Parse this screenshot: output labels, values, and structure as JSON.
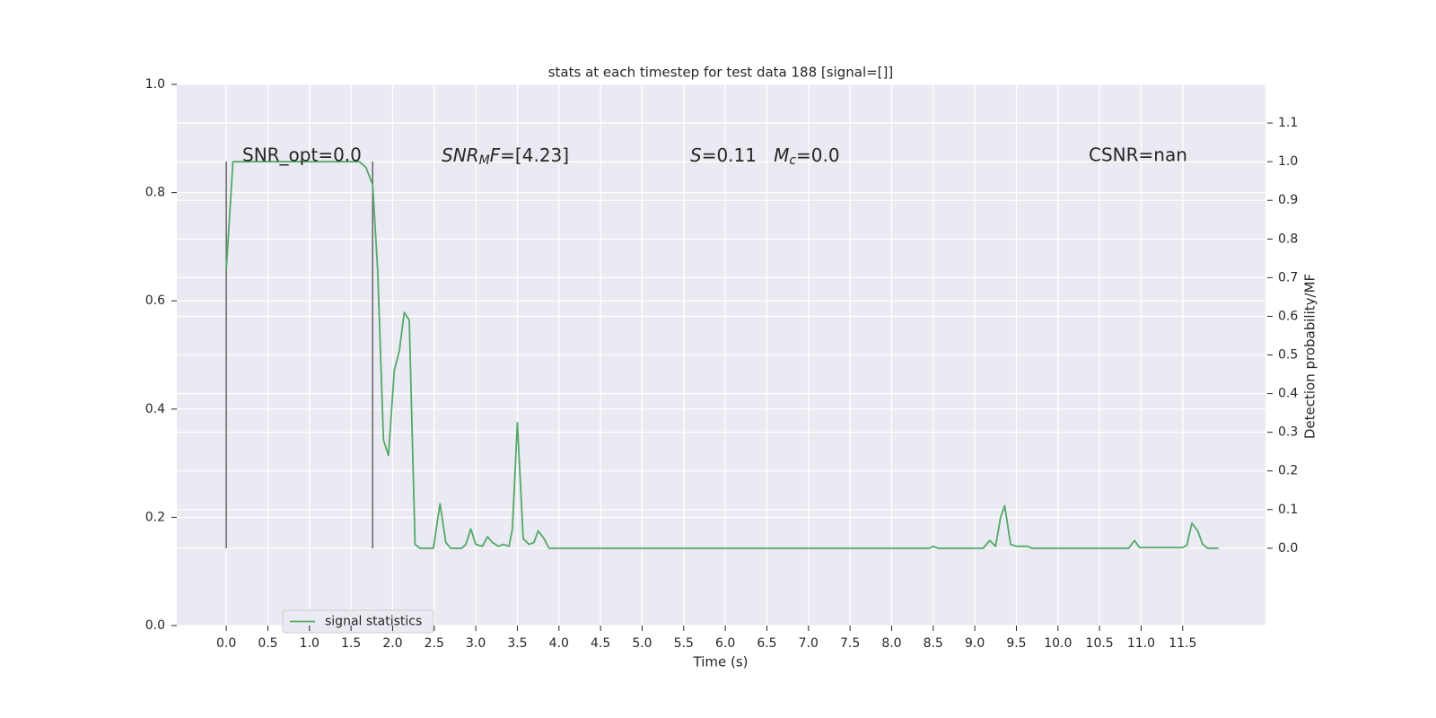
{
  "chart_data": {
    "type": "line",
    "title": "stats at each timestep for test data 188 [signal=[]]",
    "xlabel": "Time (s)",
    "y2label": "Detection probability/MF",
    "annotations": [
      {
        "text": "SNR_opt=0.0"
      },
      {
        "parts": [
          "SNR",
          "M",
          "F",
          "=[4.23]"
        ]
      },
      {
        "parts": [
          "S",
          "=0.11   ",
          "M",
          "c",
          "=0.0"
        ]
      },
      {
        "text": "CSNR=nan"
      }
    ],
    "x": [
      0,
      0.08,
      1.6,
      1.68,
      1.76,
      1.82,
      1.89,
      1.95,
      2.02,
      2.08,
      2.14,
      2.2,
      2.27,
      2.33,
      2.49,
      2.57,
      2.64,
      2.7,
      2.83,
      2.88,
      2.94,
      3.0,
      3.08,
      3.14,
      3.2,
      3.27,
      3.33,
      3.4,
      3.44,
      3.5,
      3.57,
      3.64,
      3.7,
      3.75,
      3.82,
      3.88,
      8.45,
      8.5,
      8.56,
      9.1,
      9.18,
      9.25,
      9.31,
      9.36,
      9.43,
      9.5,
      9.63,
      9.69,
      10.85,
      10.92,
      10.98,
      11.5,
      11.55,
      11.61,
      11.68,
      11.74,
      11.8,
      11.93
    ],
    "series": [
      {
        "name": "signal statistics",
        "color": "#55a868",
        "axis": "y2",
        "values": [
          0.72,
          1.0,
          1.0,
          0.985,
          0.94,
          0.72,
          0.28,
          0.24,
          0.46,
          0.51,
          0.61,
          0.59,
          0.01,
          0,
          0,
          0.115,
          0.015,
          0,
          0,
          0.01,
          0.05,
          0.01,
          0.005,
          0.03,
          0.015,
          0.005,
          0.01,
          0.005,
          0.05,
          0.325,
          0.025,
          0.01,
          0.015,
          0.045,
          0.025,
          0,
          0,
          0.005,
          0,
          0,
          0.02,
          0.005,
          0.08,
          0.11,
          0.01,
          0.005,
          0.005,
          0,
          0,
          0.02,
          0.002,
          0.002,
          0.008,
          0.065,
          0.045,
          0.01,
          0,
          0
        ]
      }
    ],
    "vlines": [
      0,
      1.76
    ],
    "vline_range": [
      0,
      1
    ],
    "vline_color": "#666666",
    "xlim": [
      -0.595,
      12.495
    ],
    "xticks": [
      {
        "value": 0,
        "label": "0.0"
      },
      0.5,
      {
        "value": 1,
        "label": "1.0"
      },
      1.5,
      {
        "value": 2,
        "label": "2.0"
      },
      2.5,
      {
        "value": 3,
        "label": "3.0"
      },
      3.5,
      {
        "value": 4,
        "label": "4.0"
      },
      4.5,
      {
        "value": 5,
        "label": "5.0"
      },
      5.5,
      {
        "value": 6,
        "label": "6.0"
      },
      6.5,
      {
        "value": 7,
        "label": "7.0"
      },
      7.5,
      {
        "value": 8,
        "label": "8.0"
      },
      8.5,
      {
        "value": 9,
        "label": "9.0"
      },
      9.5,
      {
        "value": 10,
        "label": "10.0"
      },
      10.5,
      {
        "value": 11,
        "label": "11.0"
      },
      11.5
    ],
    "ylim": [
      0,
      1
    ],
    "yticks": [
      {
        "value": 0,
        "label": "0.0"
      },
      0.2,
      0.4,
      0.6,
      0.8,
      {
        "value": 1,
        "label": "1.0"
      }
    ],
    "y2lim": [
      -0.2,
      1.2
    ],
    "y2ticks": [
      {
        "value": 0,
        "label": "0.0"
      },
      0.1,
      0.2,
      0.3,
      0.4,
      0.5,
      0.6,
      0.7,
      0.8,
      0.9,
      {
        "value": 1,
        "label": "1.0"
      },
      1.1
    ],
    "grid": true,
    "legend": "lower left"
  }
}
